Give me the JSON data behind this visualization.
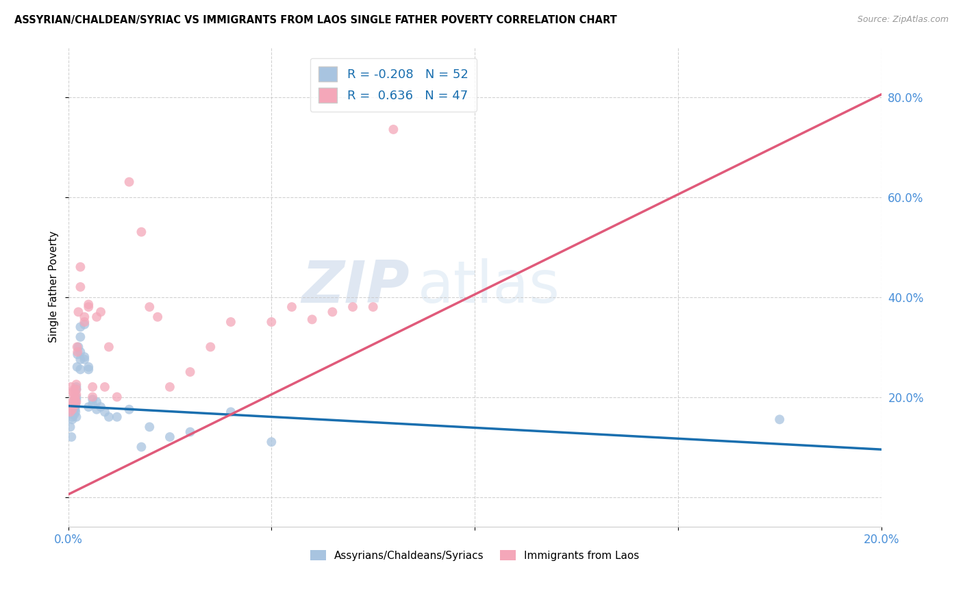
{
  "title": "ASSYRIAN/CHALDEAN/SYRIAC VS IMMIGRANTS FROM LAOS SINGLE FATHER POVERTY CORRELATION CHART",
  "source": "Source: ZipAtlas.com",
  "ylabel": "Single Father Poverty",
  "ytick_positions": [
    0.0,
    0.2,
    0.4,
    0.6,
    0.8
  ],
  "xlim": [
    0.0,
    0.2
  ],
  "ylim": [
    -0.06,
    0.9
  ],
  "legend_label1": "Assyrians/Chaldeans/Syriacs",
  "legend_label2": "Immigrants from Laos",
  "R1": -0.208,
  "N1": 52,
  "R2": 0.636,
  "N2": 47,
  "color_blue": "#a8c4e0",
  "color_pink": "#f4a7b9",
  "line_color_blue": "#1a6faf",
  "line_color_pink": "#e05a7a",
  "background_color": "#ffffff",
  "blue_x": [
    0.0005,
    0.0008,
    0.001,
    0.001,
    0.001,
    0.001,
    0.0012,
    0.0013,
    0.0014,
    0.0015,
    0.0015,
    0.0016,
    0.0017,
    0.0017,
    0.0018,
    0.0018,
    0.002,
    0.002,
    0.002,
    0.002,
    0.002,
    0.0022,
    0.0023,
    0.0025,
    0.003,
    0.003,
    0.003,
    0.003,
    0.003,
    0.004,
    0.004,
    0.004,
    0.005,
    0.005,
    0.005,
    0.006,
    0.006,
    0.007,
    0.007,
    0.008,
    0.009,
    0.01,
    0.012,
    0.015,
    0.018,
    0.02,
    0.025,
    0.03,
    0.04,
    0.05,
    0.175,
    0.001
  ],
  "blue_y": [
    0.14,
    0.12,
    0.17,
    0.165,
    0.16,
    0.155,
    0.185,
    0.18,
    0.175,
    0.19,
    0.165,
    0.195,
    0.18,
    0.175,
    0.185,
    0.17,
    0.22,
    0.215,
    0.2,
    0.195,
    0.16,
    0.26,
    0.285,
    0.3,
    0.34,
    0.32,
    0.29,
    0.275,
    0.255,
    0.345,
    0.28,
    0.275,
    0.26,
    0.255,
    0.18,
    0.195,
    0.185,
    0.19,
    0.175,
    0.18,
    0.17,
    0.16,
    0.16,
    0.175,
    0.1,
    0.14,
    0.12,
    0.13,
    0.17,
    0.11,
    0.155,
    0.18
  ],
  "pink_x": [
    0.0005,
    0.0007,
    0.001,
    0.001,
    0.001,
    0.0012,
    0.0013,
    0.0015,
    0.0015,
    0.0016,
    0.0017,
    0.0018,
    0.002,
    0.002,
    0.002,
    0.002,
    0.0022,
    0.0023,
    0.0025,
    0.003,
    0.003,
    0.004,
    0.004,
    0.005,
    0.005,
    0.006,
    0.006,
    0.007,
    0.008,
    0.009,
    0.01,
    0.012,
    0.015,
    0.018,
    0.02,
    0.022,
    0.025,
    0.03,
    0.035,
    0.04,
    0.05,
    0.055,
    0.06,
    0.065,
    0.07,
    0.075,
    0.08
  ],
  "pink_y": [
    0.17,
    0.22,
    0.19,
    0.185,
    0.175,
    0.21,
    0.205,
    0.215,
    0.195,
    0.205,
    0.195,
    0.185,
    0.225,
    0.215,
    0.205,
    0.19,
    0.3,
    0.29,
    0.37,
    0.46,
    0.42,
    0.36,
    0.35,
    0.385,
    0.38,
    0.22,
    0.2,
    0.36,
    0.37,
    0.22,
    0.3,
    0.2,
    0.63,
    0.53,
    0.38,
    0.36,
    0.22,
    0.25,
    0.3,
    0.35,
    0.35,
    0.38,
    0.355,
    0.37,
    0.38,
    0.38,
    0.735
  ]
}
